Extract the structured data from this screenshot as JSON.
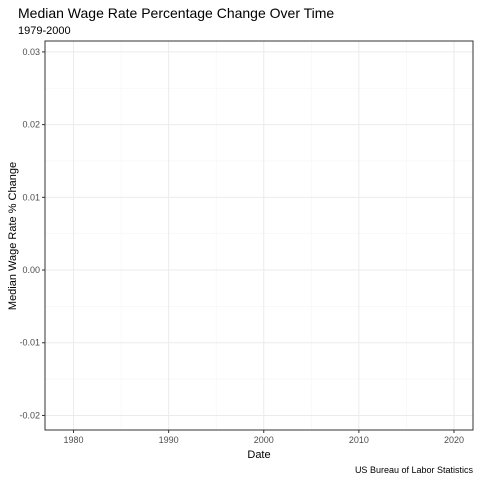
{
  "chart_data": {
    "type": "line",
    "title": "Median Wage Rate Percentage Change Over Time",
    "subtitle": "1979-2000",
    "xlabel": "Date",
    "ylabel": "Median Wage Rate % Change",
    "caption": "US Bureau of Labor Statistics",
    "xlim": [
      1977,
      2022
    ],
    "ylim": [
      -0.022,
      0.0315
    ],
    "x_ticks": [
      1980,
      1990,
      2000,
      2010,
      2020
    ],
    "x_tick_labels": [
      "1980",
      "1990",
      "2000",
      "2010",
      "2020"
    ],
    "y_ticks": [
      -0.02,
      -0.01,
      0.0,
      0.01,
      0.02,
      0.03
    ],
    "y_tick_labels": [
      "-0.02",
      "-0.01",
      "0.00",
      "0.01",
      "0.02",
      "0.03"
    ],
    "x_minor_ticks": [
      1985,
      1995,
      2005,
      2015
    ],
    "y_minor_ticks": [
      -0.015,
      -0.005,
      0.005,
      0.015,
      0.025
    ],
    "grid": true,
    "legend": "none",
    "series": [],
    "colors": {
      "background": "#ffffff",
      "panel_border": "#333333",
      "grid_major": "#ebebeb",
      "grid_minor": "#f5f5f5",
      "tick_text": "#4d4d4d",
      "text": "#000000"
    }
  }
}
